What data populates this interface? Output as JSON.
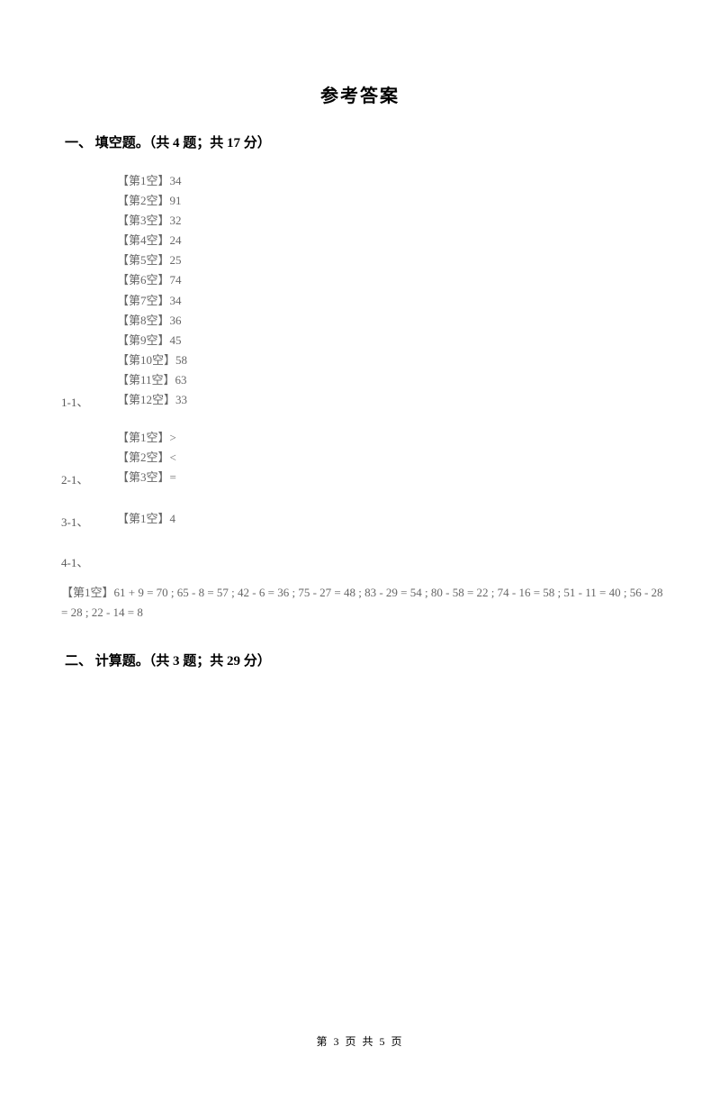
{
  "title": "参考答案",
  "section1": {
    "header": "一、 填空题。（共 4 题；共 17 分）",
    "q1": {
      "marker": "1-1、",
      "answers": [
        "【第1空】34",
        "【第2空】91",
        "【第3空】32",
        "【第4空】24",
        "【第5空】25",
        "【第6空】74",
        "【第7空】34",
        "【第8空】36",
        "【第9空】45",
        "【第10空】58",
        "【第11空】63",
        "【第12空】33"
      ]
    },
    "q2": {
      "marker": "2-1、",
      "answers": [
        "【第1空】>",
        "【第2空】<",
        "【第3空】="
      ]
    },
    "q3": {
      "marker": "3-1、",
      "answers": [
        "【第1空】4"
      ]
    },
    "q4": {
      "marker": "4-1、",
      "long_answer": "【第1空】61 + 9 = 70 ; 65 - 8 = 57 ; 42 - 6 = 36 ; 75 - 27 = 48 ; 83 - 29 = 54 ; 80 - 58 = 22 ; 74 - 16 = 58 ; 51 - 11 = 40 ; 56 - 28 = 28 ; 22 - 14 = 8"
    }
  },
  "section2": {
    "header": "二、 计算题。（共 3 题；共 29 分）"
  },
  "footer": "第 3 页 共 5 页"
}
